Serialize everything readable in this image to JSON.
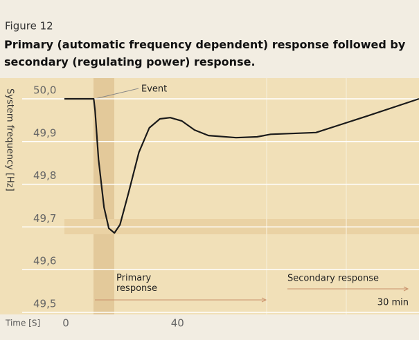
{
  "chart_data": {
    "type": "line",
    "figure_label": "Figure 12",
    "title": "Primary (automatic frequency dependent) response followed by secondary (regulating power) response.",
    "y_label": "System frequency [Hz]",
    "x_label": "Time [S]",
    "annotations": {
      "event": "Event",
      "primary": "Primary response",
      "secondary": "Secondary response",
      "end_time": "30 min"
    },
    "xlim": [
      -0.5,
      126.5
    ],
    "xticks": [
      0,
      40
    ],
    "ylim": [
      49.5,
      50.0
    ],
    "yticks": [
      {
        "value": 50.0,
        "label": "50,0"
      },
      {
        "value": 49.9,
        "label": "49,9"
      },
      {
        "value": 49.8,
        "label": "49,8"
      },
      {
        "value": 49.7,
        "label": "49,7"
      },
      {
        "value": 49.6,
        "label": "49,6"
      },
      {
        "value": 49.5,
        "label": "49,5"
      }
    ],
    "grid": true,
    "series": [
      {
        "name": "System frequency",
        "color": "#1a1a1a",
        "x": [
          -0.5,
          10,
          10.5,
          11.7,
          13.7,
          15.4,
          17.4,
          19.4,
          22.4,
          26.2,
          29.9,
          33.7,
          37.4,
          41.6,
          46.1,
          51.1,
          61.0,
          68.5,
          73.4,
          89.6,
          108.1,
          126.5
        ],
        "values": [
          50.0,
          50.0,
          49.972,
          49.859,
          49.746,
          49.697,
          49.686,
          49.705,
          49.778,
          49.875,
          49.932,
          49.953,
          49.956,
          49.948,
          49.927,
          49.914,
          49.909,
          49.911,
          49.917,
          49.921,
          49.96,
          50.0
        ]
      }
    ]
  }
}
